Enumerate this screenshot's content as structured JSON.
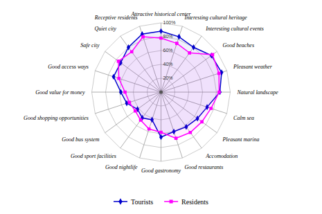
{
  "chart_data": {
    "type": "radar",
    "categories": [
      "Attractive historical center",
      "Interesting cultural heritage",
      "Interesting cultural events",
      "Good beaches",
      "Pleasant weather",
      "Natural landscape",
      "Calm sea",
      "Pleasant marina",
      "Accomodation",
      "Good restaurants",
      "Good gastronomy",
      "Good nightlife",
      "Good sport facilities",
      "Good bus system",
      "Good shopping opportunities",
      "Good value for money",
      "Good access ways",
      "Safe city",
      "Quiet city",
      "Receptive residents"
    ],
    "series": [
      {
        "name": "Tourists",
        "color": "#0000cc",
        "marker": "diamond",
        "values": [
          88,
          84,
          80,
          90,
          92,
          85,
          70,
          65,
          62,
          60,
          65,
          42,
          46,
          42,
          52,
          58,
          72,
          72,
          80,
          88
        ]
      },
      {
        "name": "Residents",
        "color": "#ff00ff",
        "marker": "square",
        "values": [
          78,
          74,
          70,
          92,
          88,
          84,
          76,
          73,
          72,
          70,
          58,
          56,
          50,
          46,
          48,
          52,
          64,
          76,
          72,
          84
        ]
      }
    ],
    "ylim": [
      0,
      100
    ],
    "yticks": [
      {
        "value": 20,
        "label": "20%"
      },
      {
        "value": 40,
        "label": "40%"
      },
      {
        "value": 60,
        "label": "60%"
      },
      {
        "value": 80,
        "label": "80%"
      },
      {
        "value": 100,
        "label": "100%"
      }
    ],
    "grid": true,
    "legend": "bottom"
  }
}
